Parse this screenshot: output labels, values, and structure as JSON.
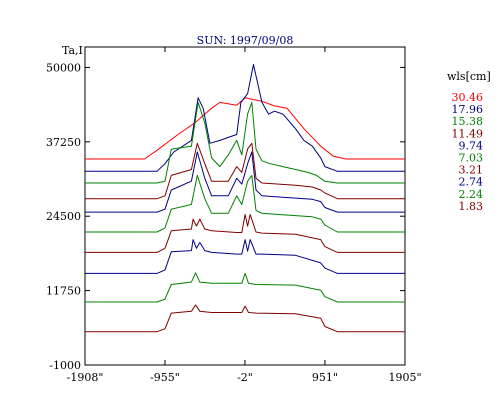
{
  "chart_data": {
    "type": "line",
    "title": "SUN: 1997/09/08",
    "ylabel": "Ta,I",
    "xlabel": "",
    "legend_title": "wls[cm]",
    "legend_placement": "right",
    "grid": false,
    "x_ticks": [
      {
        "value": -1908,
        "label": "-1908\""
      },
      {
        "value": -955,
        "label": "-955\""
      },
      {
        "value": -2,
        "label": "-2\""
      },
      {
        "value": 951,
        "label": "951\""
      },
      {
        "value": 1905,
        "label": "1905\""
      }
    ],
    "y_ticks": [
      {
        "value": -1000,
        "label": "-1000"
      },
      {
        "value": 11750,
        "label": "11750"
      },
      {
        "value": 24500,
        "label": "24500"
      },
      {
        "value": 37250,
        "label": "37250"
      },
      {
        "value": 50000,
        "label": "50000"
      }
    ],
    "xlim": [
      -1908,
      1905
    ],
    "ylim": [
      -1000,
      53500
    ],
    "series": [
      {
        "name": "30.46",
        "color": "#ff0000",
        "x": [
          -1908,
          -1200,
          -1050,
          -800,
          -600,
          -400,
          -300,
          -100,
          0,
          200,
          350,
          500,
          700,
          900,
          1050,
          1200,
          1905
        ],
        "values": [
          34300,
          34300,
          35800,
          38500,
          40500,
          43000,
          44000,
          43500,
          44800,
          44200,
          43400,
          43000,
          39500,
          36500,
          34800,
          34300,
          34300
        ]
      },
      {
        "name": "17.96",
        "color": "#000080",
        "x": [
          -1908,
          -1050,
          -955,
          -850,
          -640,
          -560,
          -500,
          -420,
          -300,
          -200,
          -100,
          -50,
          30,
          100,
          200,
          280,
          350,
          450,
          600,
          700,
          800,
          900,
          951,
          1100,
          1905
        ],
        "values": [
          32200,
          32200,
          33500,
          35500,
          37500,
          44800,
          43000,
          37000,
          37500,
          38000,
          38500,
          44000,
          45500,
          50500,
          44000,
          42000,
          42500,
          42000,
          39500,
          37500,
          36500,
          34500,
          33000,
          32200,
          32200
        ]
      },
      {
        "name": "15.38",
        "color": "#008000",
        "x": [
          -1908,
          -1050,
          -955,
          -880,
          -640,
          -560,
          -480,
          -400,
          -300,
          -200,
          -100,
          -40,
          30,
          80,
          130,
          200,
          300,
          450,
          600,
          750,
          851,
          900,
          951,
          1100,
          1905
        ],
        "values": [
          30200,
          30200,
          30500,
          36000,
          36500,
          44000,
          40500,
          34500,
          33000,
          35000,
          37500,
          35000,
          42000,
          44000,
          36000,
          34000,
          33500,
          33000,
          32500,
          32000,
          31500,
          31000,
          30500,
          30200,
          30200
        ]
      },
      {
        "name": "11.49",
        "color": "#800000",
        "x": [
          -1908,
          -1050,
          -955,
          -880,
          -640,
          -570,
          -480,
          -400,
          -200,
          -100,
          -40,
          30,
          80,
          130,
          200,
          400,
          600,
          800,
          900,
          951,
          1100,
          1905
        ],
        "values": [
          27500,
          27500,
          28000,
          31500,
          32500,
          37000,
          33500,
          30500,
          30500,
          33000,
          32000,
          36000,
          37000,
          31000,
          30200,
          30000,
          29800,
          29500,
          29000,
          28500,
          27500,
          27500
        ]
      },
      {
        "name": "9.74",
        "color": "#000080",
        "x": [
          -1908,
          -1050,
          -955,
          -880,
          -640,
          -570,
          -480,
          -400,
          -200,
          -100,
          -40,
          30,
          80,
          130,
          200,
          400,
          600,
          800,
          900,
          951,
          1100,
          1905
        ],
        "values": [
          25200,
          25200,
          25700,
          29000,
          30500,
          35500,
          31000,
          28000,
          28000,
          31000,
          30000,
          33500,
          35500,
          29000,
          28000,
          27800,
          27600,
          27400,
          27000,
          26000,
          25200,
          25200
        ]
      },
      {
        "name": "7.03",
        "color": "#008000",
        "x": [
          -1908,
          -1050,
          -955,
          -880,
          -640,
          -570,
          -480,
          -400,
          -200,
          -100,
          -40,
          30,
          80,
          130,
          200,
          400,
          600,
          800,
          900,
          951,
          1100,
          1905
        ],
        "values": [
          21800,
          21800,
          22500,
          25700,
          26500,
          31500,
          27500,
          25000,
          25000,
          28000,
          26500,
          30500,
          31500,
          25500,
          25000,
          24800,
          24600,
          24400,
          24000,
          23000,
          21800,
          21800
        ]
      },
      {
        "name": "3.21",
        "color": "#800000",
        "x": [
          -1908,
          -1050,
          -955,
          -880,
          -640,
          -620,
          -580,
          -540,
          -480,
          -400,
          -100,
          -40,
          0,
          30,
          60,
          130,
          200,
          600,
          900,
          951,
          1100,
          1905
        ],
        "values": [
          18300,
          18300,
          19000,
          22000,
          22300,
          24000,
          22800,
          24000,
          22300,
          22000,
          21700,
          21700,
          24800,
          22800,
          24800,
          21800,
          21600,
          21400,
          20500,
          19300,
          18300,
          18300
        ]
      },
      {
        "name": "2.74",
        "color": "#000080",
        "x": [
          -1908,
          -1050,
          -955,
          -880,
          -640,
          -620,
          -580,
          -540,
          -480,
          -400,
          -100,
          -40,
          0,
          30,
          60,
          130,
          200,
          600,
          900,
          951,
          1100,
          1905
        ],
        "values": [
          14700,
          14700,
          15300,
          18400,
          18600,
          20500,
          19000,
          20000,
          18600,
          18300,
          18000,
          18000,
          20500,
          18500,
          20500,
          18000,
          18000,
          17800,
          16500,
          15600,
          14700,
          14700
        ]
      },
      {
        "name": "2.24",
        "color": "#008000",
        "x": [
          -1908,
          -1050,
          -955,
          -880,
          -640,
          -590,
          -540,
          -400,
          -100,
          -40,
          0,
          40,
          130,
          600,
          900,
          951,
          1100,
          1905
        ],
        "values": [
          9800,
          9800,
          10300,
          12800,
          13200,
          14800,
          13200,
          13000,
          13000,
          13000,
          14700,
          13000,
          12800,
          12700,
          11800,
          10700,
          9800,
          9800
        ]
      },
      {
        "name": "1.83",
        "color": "#800000",
        "x": [
          -1908,
          -1050,
          -955,
          -880,
          -640,
          -590,
          -540,
          -400,
          -100,
          -40,
          0,
          40,
          130,
          600,
          900,
          951,
          1100,
          1905
        ],
        "values": [
          4700,
          4700,
          5200,
          7900,
          8200,
          9300,
          8200,
          8000,
          8000,
          8000,
          9100,
          8000,
          7900,
          7800,
          7000,
          5600,
          4700,
          4700
        ]
      }
    ]
  }
}
